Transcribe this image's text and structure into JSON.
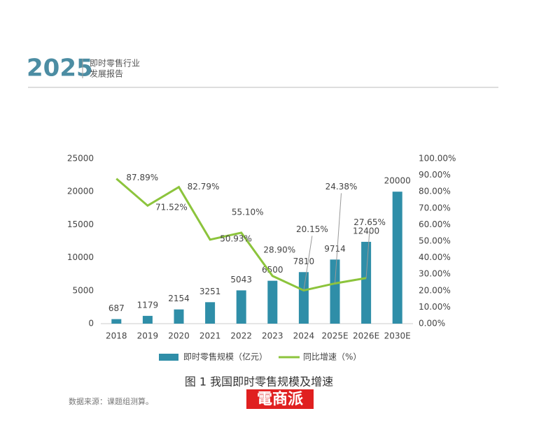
{
  "header": {
    "year": "2025",
    "line1": "即时零售行业",
    "line2": "发展报告"
  },
  "chart_data": {
    "type": "bar",
    "categories": [
      "2018",
      "2019",
      "2020",
      "2021",
      "2022",
      "2023",
      "2024",
      "2025E",
      "2026E",
      "2030E"
    ],
    "series": [
      {
        "name": "即时零售规模（亿元）",
        "type": "bar",
        "color": "#2f8ea8",
        "values": [
          687,
          1179,
          2154,
          3251,
          5043,
          6500,
          7810,
          9714,
          12400,
          20000
        ]
      },
      {
        "name": "同比增速（%）",
        "type": "line",
        "axis": "y2",
        "color": "#8cc43c",
        "values": [
          87.89,
          71.52,
          82.79,
          50.93,
          55.1,
          28.9,
          20.15,
          24.38,
          27.65,
          null
        ],
        "value_labels": [
          "87.89%",
          "71.52%",
          "82.79%",
          "50.93%",
          "55.10%",
          "28.90%",
          "20.15%",
          "24.38%",
          "27.65%",
          null
        ]
      }
    ],
    "ylim": [
      0,
      25000
    ],
    "yticks": [
      0,
      5000,
      10000,
      15000,
      20000,
      25000
    ],
    "y2lim": [
      0,
      100
    ],
    "y2ticks": [
      {
        "value": 0,
        "label": "0.00%"
      },
      {
        "value": 10,
        "label": "10.00%"
      },
      {
        "value": 20,
        "label": "20.00%"
      },
      {
        "value": 30,
        "label": "30.00%"
      },
      {
        "value": 40,
        "label": "40.00%"
      },
      {
        "value": 50,
        "label": "50.00%"
      },
      {
        "value": 60,
        "label": "60.00%"
      },
      {
        "value": 70,
        "label": "70.00%"
      },
      {
        "value": 80,
        "label": "80.00%"
      },
      {
        "value": 90,
        "label": "90.00%"
      },
      {
        "value": 100,
        "label": "100.00%"
      }
    ],
    "legend": "bottom"
  },
  "caption": "图 1  我国即时零售规模及增速",
  "source": "数据来源：课题组测算。",
  "watermark": "電商派"
}
